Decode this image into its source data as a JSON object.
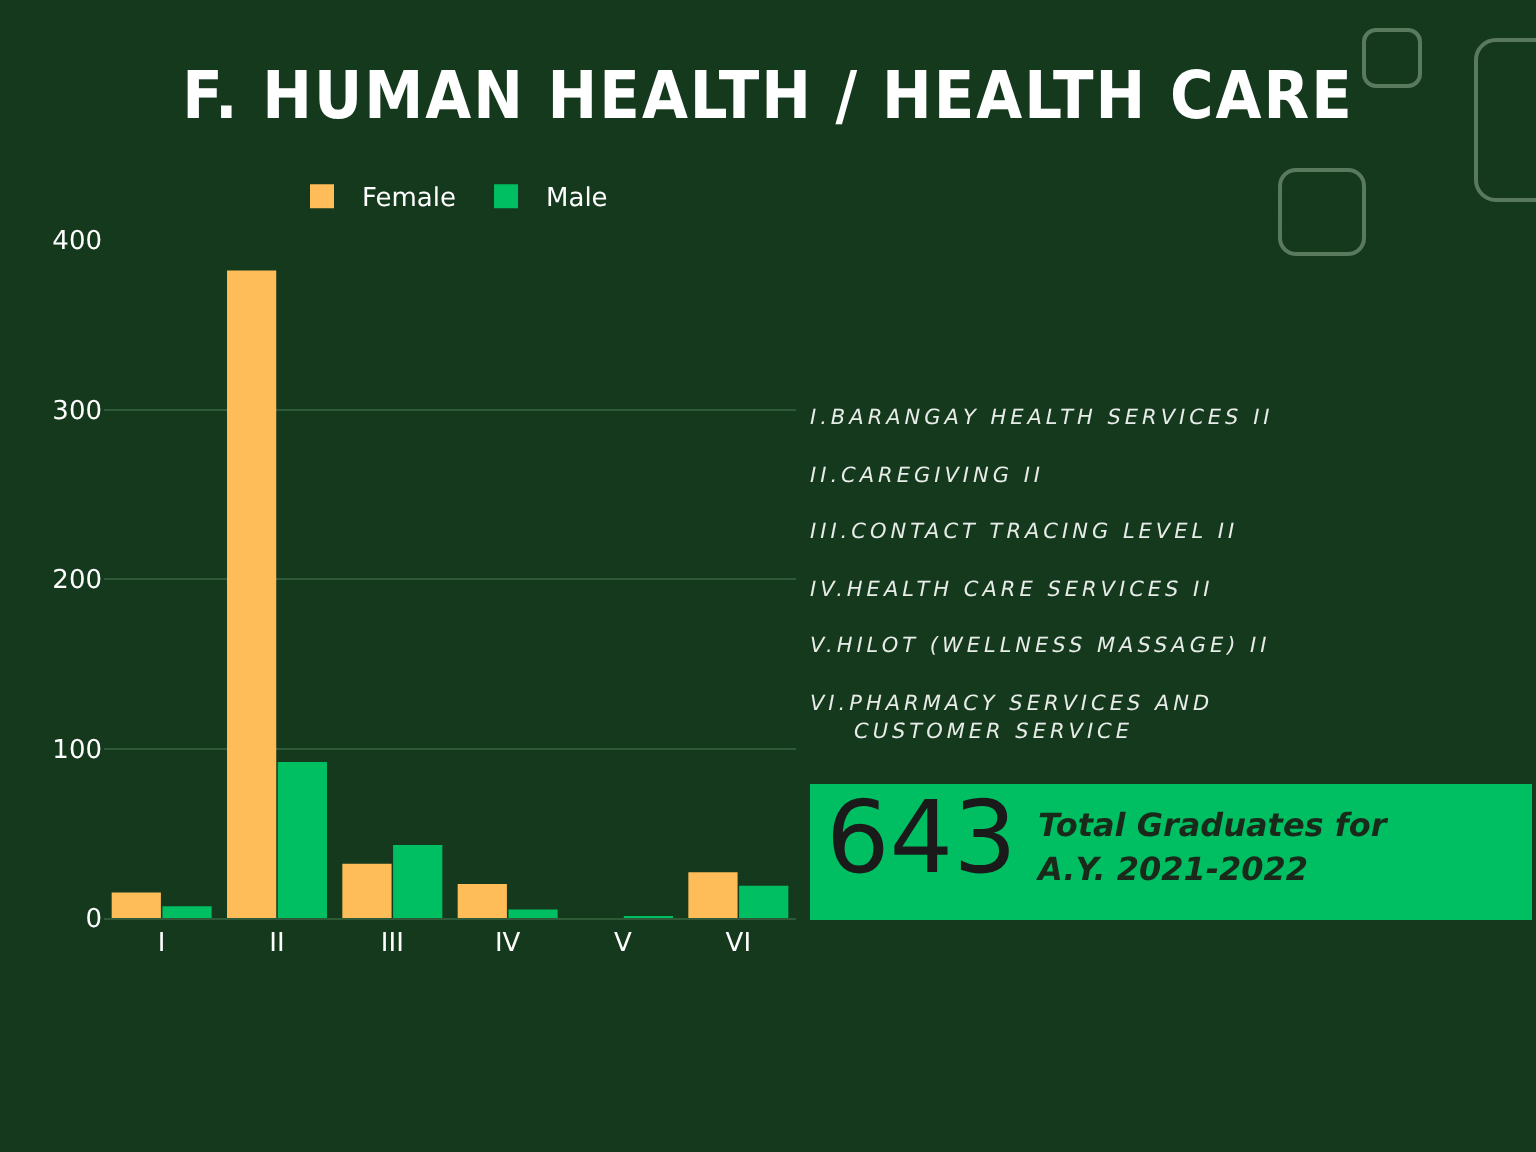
{
  "chart_data": {
    "type": "bar",
    "title": "F. HUMAN HEALTH / HEALTH CARE",
    "categories": [
      "I",
      "II",
      "III",
      "IV",
      "V",
      "VI"
    ],
    "series": [
      {
        "name": "Female",
        "color": "#ffbd59",
        "values": [
          15,
          382,
          32,
          20,
          0,
          27
        ]
      },
      {
        "name": "Male",
        "color": "#00bf63",
        "values": [
          7,
          92,
          43,
          5,
          1,
          19
        ]
      }
    ],
    "ylim": [
      0,
      400
    ],
    "yticks": [
      0,
      100,
      200,
      300,
      400
    ],
    "grid": "y",
    "legend": "top",
    "annotations": [
      "I.BARANGAY HEALTH SERVICES II",
      "II.CAREGIVING II",
      "III.CONTACT TRACING LEVEL II",
      "IV.HEALTH CARE SERVICES II",
      "V.HILOT (WELLNESS MASSAGE) II",
      "VI.PHARMACY SERVICES AND CUSTOMER SERVICE",
      "643",
      "Total Graduates for A.Y. 2021-2022"
    ]
  }
}
